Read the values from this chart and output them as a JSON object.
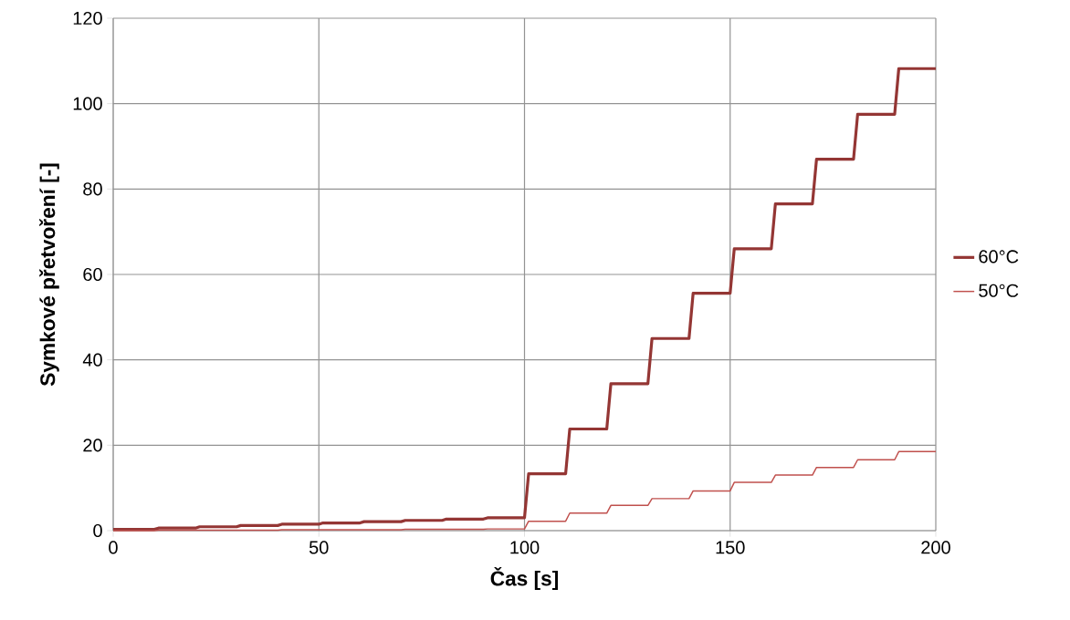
{
  "chart_data": {
    "type": "line",
    "xlabel": "Čas [s]",
    "ylabel": "Symkové přetvoření [-]",
    "xlim": [
      0,
      200
    ],
    "xticks": [
      0,
      50,
      100,
      150,
      200
    ],
    "ylim": [
      0,
      120
    ],
    "yticks": [
      0,
      20,
      40,
      60,
      80,
      100,
      120
    ],
    "grid": true,
    "legend": "right",
    "marker": "none",
    "line_style": "solid",
    "series": [
      {
        "name": "60°C",
        "color": "#943634",
        "x": [
          0,
          10,
          11,
          20,
          21,
          30,
          31,
          40,
          41,
          50,
          51,
          60,
          61,
          70,
          71,
          80,
          81,
          90,
          91,
          100,
          101,
          110,
          111,
          120,
          121,
          130,
          131,
          140,
          141,
          150,
          151,
          160,
          161,
          170,
          171,
          180,
          181,
          190,
          191,
          200
        ],
        "values": [
          0.3,
          0.3,
          0.6,
          0.6,
          0.9,
          0.9,
          1.2,
          1.2,
          1.5,
          1.5,
          1.8,
          1.8,
          2.1,
          2.1,
          2.4,
          2.4,
          2.7,
          2.7,
          3,
          3,
          13.3,
          13.3,
          23.8,
          23.8,
          34.4,
          34.4,
          45,
          45,
          55.6,
          55.6,
          66,
          66,
          76.5,
          76.5,
          87,
          87,
          97.5,
          97.5,
          108.2,
          108.2
        ]
      },
      {
        "name": "50°C",
        "color": "#c0504d",
        "x": [
          0,
          10,
          11,
          20,
          21,
          30,
          31,
          40,
          41,
          50,
          51,
          60,
          61,
          70,
          71,
          80,
          81,
          90,
          91,
          100,
          101,
          110,
          111,
          120,
          121,
          130,
          131,
          140,
          141,
          150,
          151,
          160,
          161,
          170,
          171,
          180,
          181,
          190,
          191,
          200
        ],
        "values": [
          0,
          0,
          0.1,
          0.1,
          0.1,
          0.1,
          0.1,
          0.1,
          0.2,
          0.2,
          0.2,
          0.2,
          0.2,
          0.2,
          0.3,
          0.3,
          0.3,
          0.3,
          0.4,
          0.4,
          2.2,
          2.2,
          4.1,
          4.1,
          5.9,
          5.9,
          7.5,
          7.5,
          9.3,
          9.3,
          11.3,
          11.3,
          13,
          13,
          14.8,
          14.8,
          16.6,
          16.6,
          18.5,
          18.5
        ]
      }
    ]
  }
}
